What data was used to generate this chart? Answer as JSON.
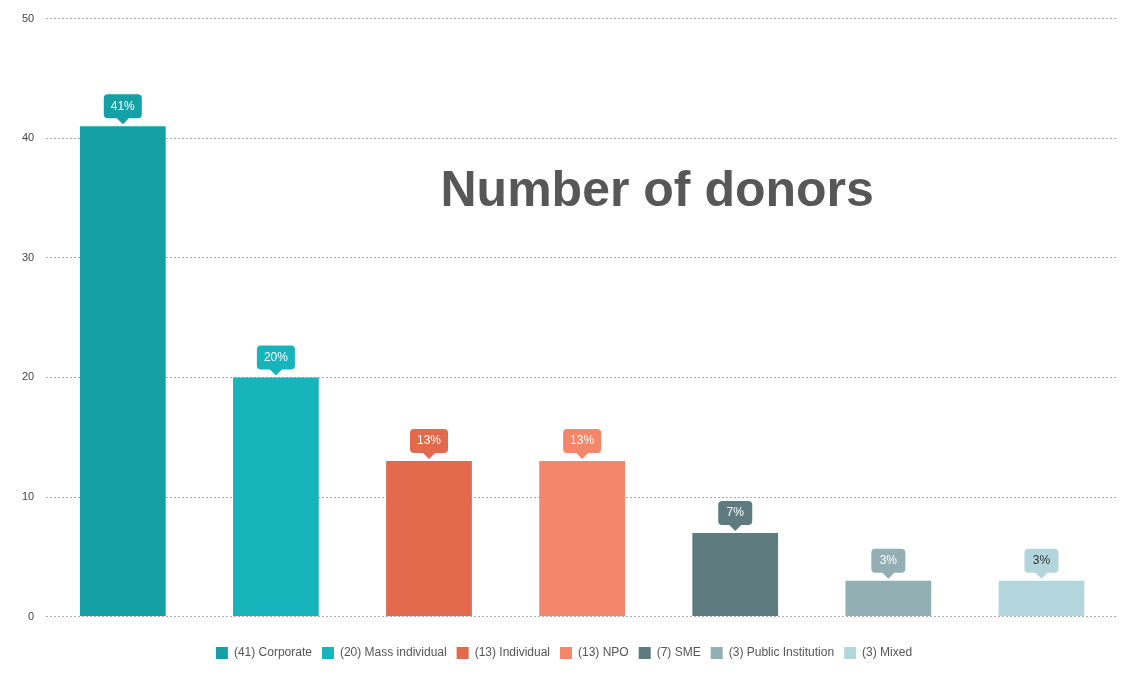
{
  "chart_data": {
    "type": "bar",
    "title": "Number of donors",
    "categories": [
      null,
      null,
      null,
      null,
      null,
      null,
      null
    ],
    "series": [
      {
        "name": "(41) Corporate",
        "color": "#14a0a4",
        "values": [
          41,
          null,
          null,
          null,
          null,
          null,
          null
        ],
        "value_labels": [
          "41%",
          null,
          null,
          null,
          null,
          null,
          null
        ]
      },
      {
        "name": "(20) Mass individual",
        "color": "#17b4bc",
        "values": [
          null,
          20,
          null,
          null,
          null,
          null,
          null
        ],
        "value_labels": [
          null,
          "20%",
          null,
          null,
          null,
          null,
          null
        ]
      },
      {
        "name": "(13) Individual",
        "color": "#e2694b",
        "values": [
          null,
          null,
          13,
          null,
          null,
          null,
          null
        ],
        "value_labels": [
          null,
          null,
          "13%",
          null,
          null,
          null,
          null
        ]
      },
      {
        "name": "(13) NPO",
        "color": "#f4866a",
        "values": [
          null,
          null,
          null,
          13,
          null,
          null,
          null
        ],
        "value_labels": [
          null,
          null,
          null,
          "13%",
          null,
          null,
          null
        ]
      },
      {
        "name": "(7) SME",
        "color": "#5e7b80",
        "values": [
          null,
          null,
          null,
          null,
          7,
          null,
          null
        ],
        "value_labels": [
          null,
          null,
          null,
          null,
          "7%",
          null,
          null
        ]
      },
      {
        "name": "(3) Public Institution",
        "color": "#93afb4",
        "values": [
          null,
          null,
          null,
          null,
          null,
          3,
          null
        ],
        "value_labels": [
          null,
          null,
          null,
          null,
          null,
          "3%",
          null
        ]
      },
      {
        "name": "(3) Mixed",
        "color": "#b3d6dc",
        "values": [
          null,
          null,
          null,
          null,
          null,
          null,
          3
        ],
        "value_labels": [
          null,
          null,
          null,
          null,
          null,
          null,
          "3%"
        ]
      }
    ],
    "ylim": [
      0,
      50
    ],
    "yticks": [
      0,
      10,
      20,
      30,
      40,
      50
    ],
    "grid": "y",
    "legend": "bottom"
  }
}
